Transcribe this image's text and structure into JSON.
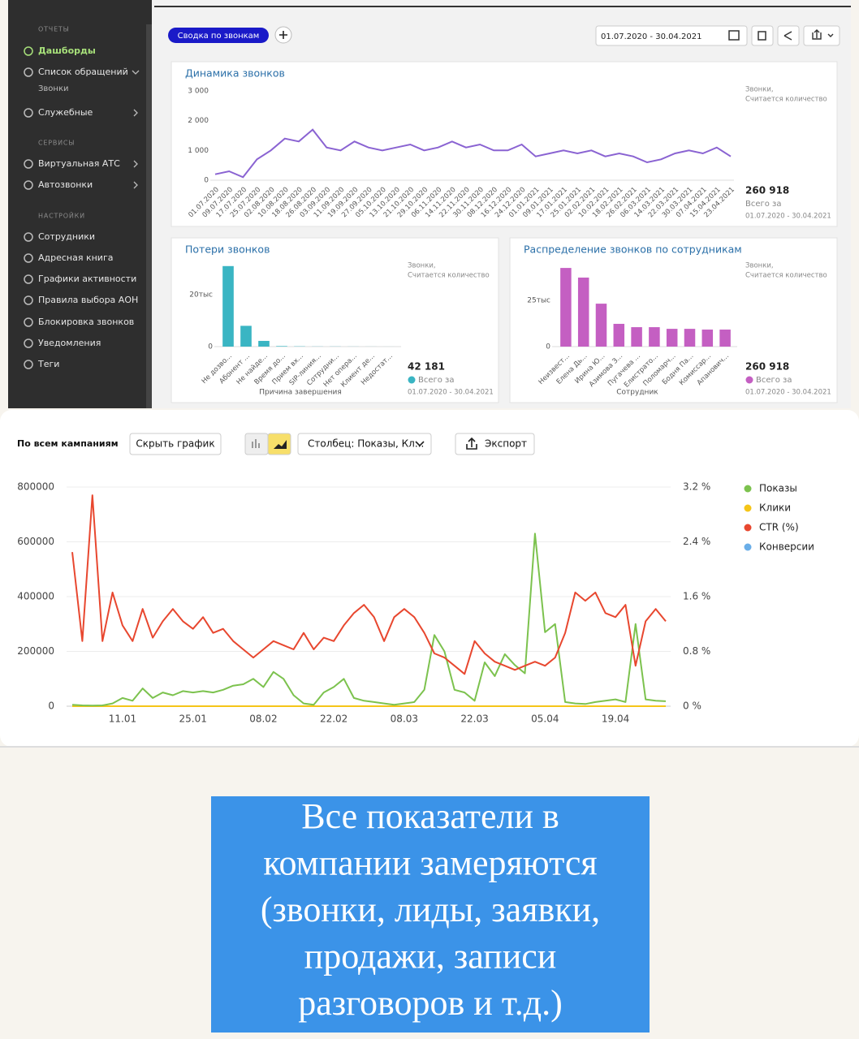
{
  "sidebar": [
    {
      "heading": "ОТЧЕТЫ",
      "items": [
        "Дашборды",
        {
          "label": "Список обращений",
          "sub": "Звонки"
        },
        "Служебные"
      ]
    },
    {
      "heading": "СЕРВИСЫ",
      "items": [
        "Виртуальная АТС",
        "Автозвонки"
      ]
    },
    {
      "heading": "НАСТРОЙКИ",
      "items": [
        "Сотрудники",
        "Адресная книга",
        "Графики активности",
        "Правила выбора АОН",
        "Блокировка звонков",
        "Уведомления",
        "Теги"
      ]
    }
  ],
  "toolbar": {
    "tab": "Сводка по звонкам",
    "period": "01.07.2020 - 30.04.2021"
  },
  "direct_toolbar": {
    "title": "По всем кампаниям",
    "hide": "Скрыть график",
    "column": "Столбец: Показы, Кл...",
    "export": "Экспорт"
  },
  "chart_data": [
    {
      "type": "line",
      "title": "Динамика звонков",
      "color": "#8a63d2",
      "categories": [
        "01.07.2020",
        "09.07.2020",
        "17.07.2020",
        "25.07.2020",
        "02.08.2020",
        "10.08.2020",
        "18.08.2020",
        "26.08.2020",
        "03.09.2020",
        "11.09.2020",
        "19.09.2020",
        "27.09.2020",
        "05.10.2020",
        "13.10.2020",
        "21.10.2020",
        "29.10.2020",
        "06.11.2020",
        "14.11.2020",
        "22.11.2020",
        "30.11.2020",
        "08.12.2020",
        "16.12.2020",
        "24.12.2020",
        "01.01.2021",
        "09.01.2021",
        "17.01.2021",
        "25.01.2021",
        "02.02.2021",
        "10.02.2021",
        "18.02.2021",
        "26.02.2021",
        "06.03.2021",
        "14.03.2021",
        "22.03.2021",
        "30.03.2021",
        "07.04.2021",
        "15.04.2021",
        "23.04.2021"
      ],
      "values": [
        200,
        300,
        100,
        700,
        1000,
        1400,
        1300,
        1700,
        1100,
        1000,
        1300,
        1100,
        1000,
        1100,
        1200,
        1000,
        1100,
        1300,
        1100,
        1200,
        1000,
        1000,
        1200,
        800,
        900,
        1000,
        900,
        1000,
        800,
        900,
        800,
        600,
        700,
        900,
        1000,
        900,
        1100,
        800
      ],
      "ylim": [
        0,
        3000
      ],
      "yticks": [
        {
          "value": 3000,
          "label": "3 000"
        },
        {
          "value": 2000,
          "label": "2 000"
        },
        {
          "value": 1000,
          "label": "1 000"
        },
        0
      ],
      "note": [
        "Звонки,",
        "Считается количество"
      ],
      "total": "260 918",
      "total_label": "Всего за",
      "period": "01.07.2020 - 30.04.2021"
    },
    {
      "type": "bar",
      "title": "Потери звонков",
      "color": "#3ab5c3",
      "xlabel": "Причина завершения",
      "categories": [
        "Не дозво...",
        "Абонент ...",
        "Не найде...",
        "Время до...",
        "Прием вх...",
        "SIP-линия...",
        "Сотрудни...",
        "Нет опера...",
        "Клиент де...",
        "Недостат..."
      ],
      "values": [
        31000,
        8000,
        2200,
        200,
        100,
        50,
        50,
        30,
        20,
        10
      ],
      "ylim": [
        0,
        35000
      ],
      "yticks": [
        {
          "value": 20000,
          "label": "20тыс"
        },
        0
      ],
      "note": [
        "Звонки,",
        "Считается количество"
      ],
      "total": "42 181",
      "total_label": "Всего за",
      "period": "01.07.2020 - 30.04.2021"
    },
    {
      "type": "bar",
      "title": "Распределение звонков по сотрудникам",
      "color": "#c45fc2",
      "xlabel": "Сотрудник",
      "categories": [
        "Неизвест...",
        "Елена Дь...",
        "Ирина Ю...",
        "Азимова З...",
        "Пугачева ...",
        "Елистрато...",
        "Поломарч...",
        "Бодня Па...",
        "Комиссар...",
        "Апанович..."
      ],
      "values": [
        42500,
        37300,
        23200,
        12300,
        10500,
        10500,
        9600,
        9600,
        9200,
        9200
      ],
      "ylim": [
        0,
        45000
      ],
      "yticks": [
        {
          "value": 25000,
          "label": "25тыс"
        },
        0
      ],
      "note": [
        "Звонки,",
        "Считается количество"
      ],
      "total": "260 918",
      "total_label": "Всего за",
      "period": "01.07.2020 - 30.04.2021"
    },
    {
      "type": "dual_line",
      "grid": true,
      "categories": [
        null,
        null,
        null,
        null,
        null,
        "11.01",
        null,
        null,
        null,
        null,
        null,
        null,
        "25.01",
        null,
        null,
        null,
        null,
        null,
        null,
        "08.02",
        null,
        null,
        null,
        null,
        null,
        null,
        "22.02",
        null,
        null,
        null,
        null,
        null,
        null,
        "08.03",
        null,
        null,
        null,
        null,
        null,
        null,
        "22.03",
        null,
        null,
        null,
        null,
        null,
        null,
        "05.04",
        null,
        null,
        null,
        null,
        null,
        null,
        "19.04",
        null,
        null,
        null,
        null,
        null
      ],
      "ylim": [
        0,
        800000
      ],
      "yticks": [
        0,
        200000,
        400000,
        600000,
        800000
      ],
      "y2lim": [
        0,
        3.2
      ],
      "y2ticks": [
        {
          "value": 0,
          "label": "0 %"
        },
        {
          "value": 0.8,
          "label": "0.8 %"
        },
        {
          "value": 1.6,
          "label": "1.6 %"
        },
        {
          "value": 2.4,
          "label": "2.4 %"
        },
        {
          "value": 3.2,
          "label": "3.2 %"
        }
      ],
      "series": [
        {
          "name": "Показы",
          "color": "#7cc24e",
          "values": [
            5000,
            3000,
            2000,
            3000,
            10000,
            30000,
            20000,
            65000,
            30000,
            50000,
            40000,
            55000,
            50000,
            55000,
            50000,
            60000,
            75000,
            80000,
            100000,
            70000,
            125000,
            100000,
            40000,
            10000,
            5000,
            50000,
            70000,
            100000,
            30000,
            20000,
            15000,
            10000,
            5000,
            10000,
            15000,
            60000,
            260000,
            200000,
            60000,
            50000,
            20000,
            160000,
            110000,
            190000,
            150000,
            120000,
            630000,
            270000,
            300000,
            15000,
            10000,
            8000,
            15000,
            20000,
            25000,
            15000,
            300000,
            25000,
            20000,
            18000
          ]
        },
        {
          "name": "Клики",
          "color": "#f5c518",
          "values": [
            0,
            0,
            0,
            0,
            0,
            0,
            0,
            0,
            0,
            0,
            0,
            0,
            0,
            0,
            0,
            0,
            0,
            0,
            0,
            0,
            0,
            0,
            0,
            0,
            0,
            0,
            0,
            0,
            0,
            0,
            0,
            0,
            0,
            0,
            0,
            0,
            0,
            0,
            0,
            0,
            0,
            0,
            0,
            0,
            0,
            0,
            0,
            0,
            0,
            0,
            0,
            0,
            0,
            0,
            0,
            0,
            0,
            0,
            0,
            0
          ]
        },
        {
          "name": "CTR (%)",
          "color": "#e8472f",
          "axis": "y2",
          "values": [
            2.25,
            0.95,
            3.08,
            0.95,
            1.66,
            1.18,
            0.95,
            1.42,
            1,
            1.24,
            1.42,
            1.24,
            1.13,
            1.3,
            1.07,
            1.13,
            0.95,
            0.83,
            0.71,
            0.83,
            0.95,
            0.89,
            0.83,
            1.07,
            0.83,
            1,
            0.95,
            1.18,
            1.36,
            1.48,
            1.3,
            0.95,
            1.3,
            1.42,
            1.3,
            1.07,
            0.77,
            0.71,
            0.59,
            0.47,
            0.95,
            0.77,
            0.65,
            0.59,
            0.53,
            0.59,
            0.65,
            0.59,
            0.71,
            1.07,
            1.66,
            1.54,
            1.66,
            1.36,
            1.3,
            1.48,
            0.59,
            1.24,
            1.42,
            1.24
          ]
        },
        {
          "name": "Конверсии",
          "color": "#6aaee8",
          "values": [
            0,
            0,
            0,
            0,
            0,
            0,
            0,
            0,
            0,
            0,
            0,
            0,
            0,
            0,
            0,
            0,
            0,
            0,
            0,
            0,
            0,
            0,
            0,
            0,
            0,
            0,
            0,
            0,
            0,
            0,
            0,
            0,
            0,
            0,
            0,
            0,
            0,
            0,
            0,
            0,
            0,
            0,
            0,
            0,
            0,
            0,
            0,
            0,
            0,
            0,
            0,
            0,
            0,
            0,
            0,
            0,
            0,
            0,
            0,
            0
          ]
        }
      ]
    }
  ],
  "caption": [
    "Все показатели в",
    "компании замеряются",
    "(звонки, лиды, заявки,",
    "продажи, записи",
    "разговоров и т.д.)"
  ]
}
